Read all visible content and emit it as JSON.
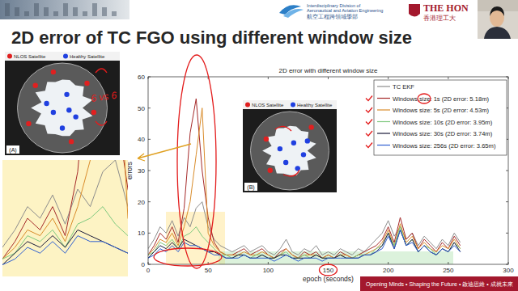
{
  "header": {
    "division_en": [
      "Interdisciplinary Division of",
      "Aeronautical and Aviation Engineering"
    ],
    "division_zh": "航空工程跨領域學部",
    "university_en": "THE HON",
    "university_zh": "香港理工大"
  },
  "slide_title": "2D error of TC FGO using different window size",
  "footer": "Opening Minds • Shaping the Future • 啟迪思維 • 成就未來",
  "skyplots": [
    {
      "label": "(A)",
      "nlos": "NLOS Satellite",
      "healthy": "Healthy Satellite"
    },
    {
      "label": "(B)",
      "nlos": "NLOS Satellite",
      "healthy": "Healthy Satellite"
    }
  ],
  "handwriting": "6 vs 6",
  "chart_data": {
    "type": "line",
    "title": "2D error with different window size",
    "xlabel": "epoch (seconds)",
    "ylabel": "errors",
    "x": [
      0,
      5,
      10,
      15,
      20,
      25,
      30,
      35,
      40,
      45,
      50,
      55,
      60,
      65,
      70,
      75,
      80,
      85,
      90,
      95,
      100,
      105,
      110,
      115,
      120,
      125,
      130,
      135,
      140,
      145,
      150,
      155,
      160,
      165,
      170,
      175,
      180,
      185,
      190,
      195,
      200,
      205,
      210,
      215,
      220,
      225,
      230,
      235,
      240,
      245,
      250,
      255,
      260
    ],
    "series": [
      {
        "name": "TC EKF",
        "color": "#8c8c8c",
        "values": [
          5,
          8,
          12,
          10,
          14,
          9,
          15,
          12,
          18,
          20,
          12,
          8,
          6,
          5,
          4,
          5,
          6,
          4,
          5,
          6,
          4,
          3,
          5,
          8,
          4,
          3,
          5,
          4,
          6,
          3,
          4,
          3,
          5,
          4,
          3,
          5,
          4,
          6,
          8,
          10,
          14,
          9,
          12,
          8,
          10,
          6,
          9,
          7,
          5,
          8,
          6,
          10,
          7
        ]
      },
      {
        "name": "Windows size: 1s (2D error: 5.18m)",
        "color": "#a52a2a",
        "values": [
          3,
          6,
          10,
          8,
          12,
          7,
          18,
          42,
          53,
          30,
          15,
          7,
          4,
          3,
          3,
          4,
          5,
          3,
          4,
          5,
          3,
          2,
          4,
          5,
          3,
          2,
          4,
          3,
          4,
          2,
          3,
          2,
          4,
          3,
          2,
          3,
          4,
          5,
          6,
          8,
          12,
          7,
          15,
          8,
          10,
          5,
          8,
          6,
          4,
          7,
          5,
          9,
          6
        ]
      },
      {
        "name": "Windows size: 5s (2D error: 4.53m)",
        "color": "#d98c2b",
        "values": [
          3,
          5,
          8,
          7,
          10,
          6,
          12,
          20,
          35,
          50,
          10,
          6,
          4,
          3,
          3,
          3,
          4,
          3,
          3,
          4,
          3,
          2,
          3,
          5,
          3,
          2,
          3,
          3,
          3,
          2,
          3,
          2,
          3,
          3,
          2,
          3,
          3,
          4,
          5,
          7,
          11,
          6,
          13,
          7,
          9,
          5,
          7,
          5,
          4,
          6,
          5,
          8,
          5
        ]
      },
      {
        "name": "Windows size: 10s (2D error: 3.95m)",
        "color": "#7fc97f",
        "values": [
          3,
          4,
          7,
          6,
          8,
          5,
          9,
          10,
          12,
          9,
          7,
          5,
          3,
          3,
          2,
          3,
          3,
          2,
          3,
          3,
          2,
          2,
          3,
          4,
          2,
          2,
          3,
          2,
          3,
          2,
          2,
          2,
          3,
          2,
          2,
          3,
          3,
          3,
          5,
          6,
          10,
          6,
          12,
          6,
          8,
          4,
          6,
          5,
          3,
          5,
          4,
          7,
          5
        ]
      },
      {
        "name": "Windows size: 30s (2D error: 3.74m)",
        "color": "#1a1a3a",
        "values": [
          2,
          4,
          6,
          5,
          7,
          5,
          8,
          7,
          6,
          5,
          4,
          4,
          3,
          2,
          2,
          3,
          3,
          2,
          2,
          3,
          2,
          2,
          3,
          3,
          2,
          2,
          2,
          2,
          3,
          2,
          2,
          2,
          3,
          2,
          2,
          2,
          3,
          3,
          4,
          6,
          10,
          5,
          11,
          6,
          8,
          4,
          6,
          4,
          3,
          5,
          4,
          7,
          4
        ]
      },
      {
        "name": "Windows size: 256s (2D error: 3.65m)",
        "color": "#2f5fd0",
        "values": [
          2,
          3,
          5,
          4,
          6,
          4,
          7,
          6,
          6,
          5,
          4,
          3,
          3,
          2,
          2,
          2,
          3,
          2,
          2,
          2,
          2,
          1,
          2,
          3,
          2,
          1,
          2,
          2,
          2,
          1,
          2,
          2,
          2,
          2,
          2,
          2,
          3,
          3,
          4,
          5,
          9,
          5,
          11,
          6,
          7,
          4,
          6,
          4,
          3,
          5,
          4,
          6,
          4
        ]
      }
    ],
    "xlim": [
      0,
      300
    ],
    "xticks": [
      0,
      50,
      100,
      150,
      200,
      250,
      300
    ],
    "ylim": [
      0,
      60
    ],
    "yticks": [
      0,
      10,
      20,
      30,
      40,
      50,
      60
    ],
    "grid": false,
    "legend": "northeast"
  }
}
